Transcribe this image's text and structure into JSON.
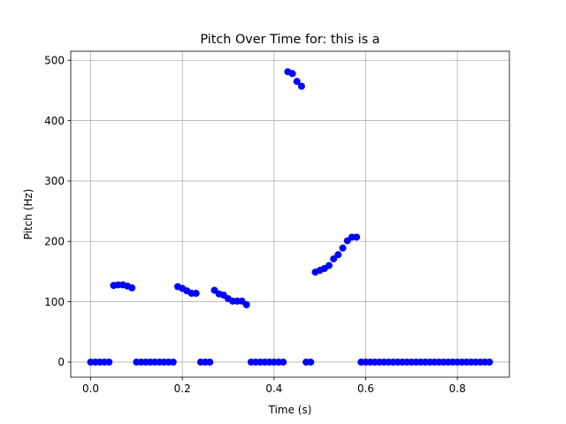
{
  "chart_data": {
    "type": "scatter",
    "title": "Pitch Over Time for: this is a",
    "xlabel": "Time (s)",
    "ylabel": "Pitch (Hz)",
    "xlim": [
      -0.0435,
      0.9135
    ],
    "ylim": [
      -25,
      515
    ],
    "xticks": [
      0.0,
      0.2,
      0.4,
      0.6,
      0.8
    ],
    "xtick_labels": [
      "0.0",
      "0.2",
      "0.4",
      "0.6",
      "0.8"
    ],
    "yticks": [
      0,
      100,
      200,
      300,
      400,
      500
    ],
    "ytick_labels": [
      "0",
      "100",
      "200",
      "300",
      "400",
      "500"
    ],
    "grid": true,
    "marker_color": "#0000ff",
    "series": [
      {
        "x": [
          0.0,
          0.01,
          0.02,
          0.03,
          0.04,
          0.05,
          0.06,
          0.07,
          0.08,
          0.09,
          0.1,
          0.11,
          0.12,
          0.13,
          0.14,
          0.15,
          0.16,
          0.17,
          0.18,
          0.19,
          0.2,
          0.21,
          0.22,
          0.23,
          0.24,
          0.25,
          0.26,
          0.27,
          0.28,
          0.29,
          0.3,
          0.31,
          0.32,
          0.33,
          0.34,
          0.35,
          0.36,
          0.37,
          0.38,
          0.39,
          0.4,
          0.41,
          0.42,
          0.43,
          0.44,
          0.45,
          0.46,
          0.47,
          0.48,
          0.49,
          0.5,
          0.51,
          0.52,
          0.53,
          0.54,
          0.55,
          0.56,
          0.57,
          0.58,
          0.59,
          0.6,
          0.61,
          0.62,
          0.63,
          0.64,
          0.65,
          0.66,
          0.67,
          0.68,
          0.69,
          0.7,
          0.71,
          0.72,
          0.73,
          0.74,
          0.75,
          0.76,
          0.77,
          0.78,
          0.79,
          0.8,
          0.81,
          0.82,
          0.83,
          0.84,
          0.85,
          0.86,
          0.87
        ],
        "y": [
          0,
          0,
          0,
          0,
          0,
          127,
          128,
          128,
          126,
          123,
          0,
          0,
          0,
          0,
          0,
          0,
          0,
          0,
          0,
          125,
          122,
          118,
          114,
          114,
          0,
          0,
          0,
          119,
          113,
          111,
          105,
          101,
          101,
          101,
          95,
          0,
          0,
          0,
          0,
          0,
          0,
          0,
          0,
          481,
          478,
          465,
          457,
          0,
          0,
          149,
          152,
          155,
          160,
          171,
          178,
          189,
          201,
          207,
          207,
          0,
          0,
          0,
          0,
          0,
          0,
          0,
          0,
          0,
          0,
          0,
          0,
          0,
          0,
          0,
          0,
          0,
          0,
          0,
          0,
          0,
          0,
          0,
          0,
          0,
          0,
          0,
          0,
          0
        ]
      }
    ]
  }
}
